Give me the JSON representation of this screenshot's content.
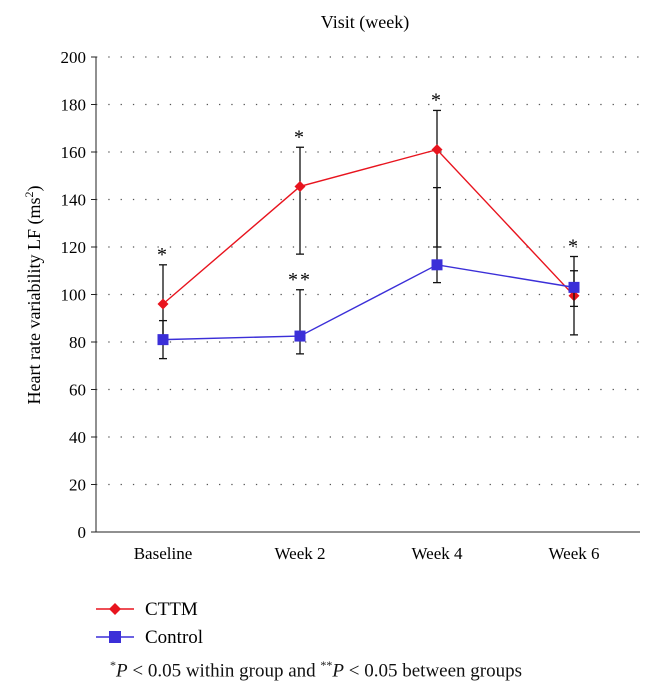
{
  "chart_data": {
    "type": "line",
    "title": "Visit (week)",
    "ylabel": "Heart rate variability LF (ms",
    "ylabel_sup": "2",
    "ylabel_close": ")",
    "categories": [
      "Baseline",
      "Week 2",
      "Week 4",
      "Week 6"
    ],
    "ylim": [
      0,
      200
    ],
    "yticks": [
      0,
      20,
      40,
      60,
      80,
      100,
      120,
      140,
      160,
      180,
      200
    ],
    "grid": true,
    "series": [
      {
        "name": "CTTM",
        "color": "#e8141e",
        "marker": "diamond",
        "values": [
          96,
          145.5,
          161,
          99.5
        ],
        "err_low": [
          82,
          117,
          120,
          83
        ],
        "err_high": [
          112.5,
          162,
          177.5,
          116
        ],
        "annotations": [
          "*",
          "*",
          "*",
          "*"
        ]
      },
      {
        "name": "Control",
        "color": "#3b2fd8",
        "marker": "square",
        "values": [
          81,
          82.5,
          112.5,
          103
        ],
        "err_low": [
          73,
          75,
          105,
          95
        ],
        "err_high": [
          89,
          102,
          145,
          110
        ],
        "annotations": [
          "",
          "**",
          "",
          ""
        ]
      }
    ],
    "legend_position": "bottom-left"
  },
  "footnote": {
    "mark1": "*",
    "p1": "P",
    "text1": " < 0.05 within group and ",
    "mark2": "**",
    "p2": "P",
    "text2": " < 0.05 between groups"
  }
}
